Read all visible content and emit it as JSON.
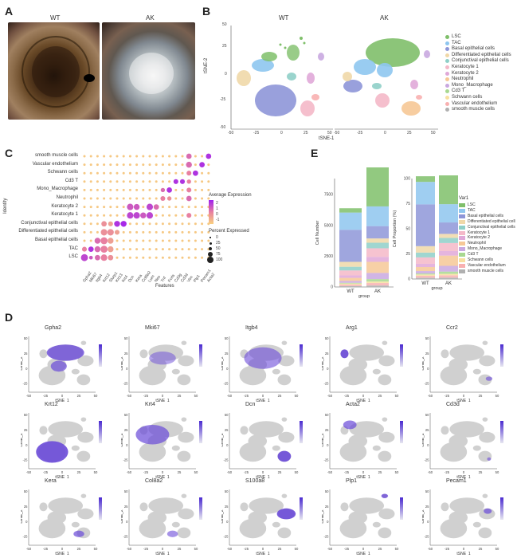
{
  "panels": {
    "A": {
      "letter": "A",
      "photo_wt_label": "WT",
      "photo_ak_label": "AK"
    },
    "B": {
      "letter": "B",
      "wt_title": "WT",
      "ak_title": "AK",
      "xlabel": "tSNE-1",
      "ylabel": "tSNE-2",
      "y_ticks": [
        "50",
        "25",
        "0",
        "-25",
        "-50"
      ],
      "x_ticks_wt": [
        "-50",
        "-25",
        "0",
        "25",
        "50"
      ],
      "x_ticks_ak": [
        "-50",
        "-25",
        "0",
        "25",
        "50"
      ],
      "legend": [
        {
          "label": "LSC",
          "color": "#7fbf6a"
        },
        {
          "label": "TAC",
          "color": "#8ec6ef"
        },
        {
          "label": "Basal epithelial cells",
          "color": "#8e96d8"
        },
        {
          "label": "Differentiated epithelial cells",
          "color": "#f0d8a8"
        },
        {
          "label": "Conjunctival epithelial cells",
          "color": "#8fcfc8"
        },
        {
          "label": "Keratocyte 1",
          "color": "#f4b8c8"
        },
        {
          "label": "Keratocyte 2",
          "color": "#e0a8d8"
        },
        {
          "label": "Neutrophil",
          "color": "#f6c896"
        },
        {
          "label": "Mono_Macrophage",
          "color": "#c9a8e0"
        },
        {
          "label": "Cd3 T",
          "color": "#a8d890"
        },
        {
          "label": "Schwann cells",
          "color": "#f8e0a0"
        },
        {
          "label": "Vascular endothelium",
          "color": "#f8b0b0"
        },
        {
          "label": "smooth muscle cells",
          "color": "#b0b0b0"
        }
      ]
    },
    "C": {
      "letter": "C",
      "ylabel": "Identity",
      "xlabel": "Features",
      "rows": [
        "smooth muscle cells",
        "Vascular endothelium",
        "Schwann cells",
        "Cd3 T",
        "Mono_Macrophage",
        "Neutrophil",
        "Keratocyte 2",
        "Keratocyte 1",
        "Conjunctival epithelial cells",
        "Differentiated epithelial cells",
        "Basal epithelial cells",
        "TAC",
        "LSC"
      ],
      "genes": [
        "Gpha2",
        "Mki67",
        "Itgb4",
        "Krt12",
        "Slurp1",
        "Krt13",
        "Krt4",
        "Dcn",
        "Kera",
        "Col8a2",
        "Lum",
        "Nes",
        "Tnf",
        "Fcrls",
        "Cd3g",
        "Cd3d",
        "Vim",
        "Plp1",
        "Pecam1",
        "Acta2"
      ],
      "legend_expr_title": "Average Expression",
      "legend_expr_ticks": [
        "2",
        "1",
        "0",
        "-1"
      ],
      "legend_pct_title": "Percent Expressed",
      "legend_pct_ticks": [
        "0",
        "25",
        "50",
        "75",
        "100"
      ]
    },
    "E": {
      "letter": "E",
      "left_ylabel": "Cell Number",
      "right_ylabel": "Cell Proportion (%)",
      "xlabel": "group",
      "legend_title": "Var1",
      "groups": [
        "WT",
        "AK"
      ],
      "left_yticks": [
        "7500",
        "5000",
        "2500",
        "0"
      ],
      "right_yticks": [
        "100",
        "75",
        "50",
        "25",
        "0"
      ]
    },
    "D": {
      "letter": "D",
      "xlabel": "tSNE_1",
      "ylabel": "tSNE_2",
      "genes": [
        "Gpha2",
        "Mki67",
        "Itgb4",
        "Arg1",
        "Ccr2",
        "Krt12",
        "Krt4",
        "Dcn",
        "Acta2",
        "Cd3d",
        "Kera",
        "Col8a2",
        "S100a8",
        "Plp1",
        "Pecam1"
      ],
      "x_ticks": [
        "-50",
        "-25",
        "0",
        "25",
        "50"
      ],
      "y_ticks": [
        "50",
        "25",
        "0",
        "-25"
      ]
    }
  },
  "chart_data": [
    {
      "type": "bar",
      "title": "",
      "xlabel": "group",
      "ylabel": "Cell Number",
      "categories": [
        "WT",
        "AK"
      ],
      "ylim": [
        0,
        8800
      ],
      "series": [
        {
          "name": "smooth muscle cells",
          "values": [
            80,
            120
          ]
        },
        {
          "name": "Vascular endothelium",
          "values": [
            120,
            200
          ]
        },
        {
          "name": "Schwann cells",
          "values": [
            80,
            120
          ]
        },
        {
          "name": "Cd3 T",
          "values": [
            60,
            200
          ]
        },
        {
          "name": "Mono_Macrophage",
          "values": [
            150,
            500
          ]
        },
        {
          "name": "Neutrophil",
          "values": [
            250,
            900
          ]
        },
        {
          "name": "Keratocyte 2",
          "values": [
            200,
            400
          ]
        },
        {
          "name": "Keratocyte 1",
          "values": [
            400,
            700
          ]
        },
        {
          "name": "Conjunctival epithelial cells",
          "values": [
            300,
            450
          ]
        },
        {
          "name": "Differentiated epithelial cells",
          "values": [
            400,
            350
          ]
        },
        {
          "name": "Basal epithelial cells",
          "values": [
            2600,
            1000
          ]
        },
        {
          "name": "TAC",
          "values": [
            1400,
            1600
          ]
        },
        {
          "name": "LSC",
          "values": [
            350,
            3600
          ]
        }
      ]
    },
    {
      "type": "bar",
      "title": "",
      "xlabel": "group",
      "ylabel": "Cell Proportion (%)",
      "categories": [
        "WT",
        "AK"
      ],
      "ylim": [
        0,
        100
      ],
      "series": [
        {
          "name": "smooth muscle cells",
          "values": [
            1.3,
            1.4
          ]
        },
        {
          "name": "Vascular endothelium",
          "values": [
            1.9,
            2.3
          ]
        },
        {
          "name": "Schwann cells",
          "values": [
            1.3,
            1.4
          ]
        },
        {
          "name": "Cd3 T",
          "values": [
            1.0,
            2.3
          ]
        },
        {
          "name": "Mono_Macrophage",
          "values": [
            2.4,
            5.7
          ]
        },
        {
          "name": "Neutrophil",
          "values": [
            4.0,
            10.2
          ]
        },
        {
          "name": "Keratocyte 2",
          "values": [
            3.2,
            4.5
          ]
        },
        {
          "name": "Keratocyte 1",
          "values": [
            6.4,
            8.0
          ]
        },
        {
          "name": "Conjunctival epithelial cells",
          "values": [
            4.8,
            5.1
          ]
        },
        {
          "name": "Differentiated epithelial cells",
          "values": [
            6.4,
            4.0
          ]
        },
        {
          "name": "Basal epithelial cells",
          "values": [
            41.6,
            11.4
          ]
        },
        {
          "name": "TAC",
          "values": [
            22.4,
            18.2
          ]
        },
        {
          "name": "LSC",
          "values": [
            5.6,
            41.0
          ]
        }
      ]
    }
  ]
}
